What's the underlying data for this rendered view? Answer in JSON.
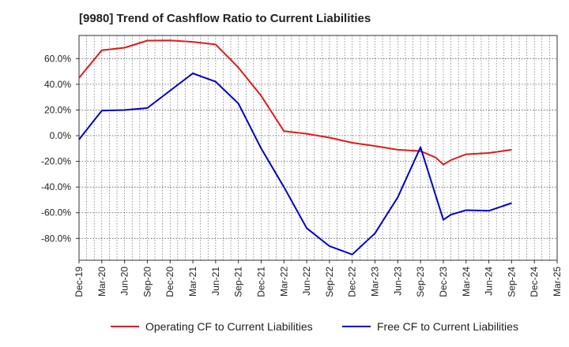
{
  "chart_data": {
    "type": "line",
    "title": "[9980]  Trend of Cashflow Ratio to Current Liabilities",
    "xlabel": "",
    "ylabel": "",
    "x_tick_labels": [
      "Dec-19",
      "Mar-20",
      "Jun-20",
      "Sep-20",
      "Dec-20",
      "Mar-21",
      "Jun-21",
      "Sep-21",
      "Dec-21",
      "Mar-22",
      "Jun-22",
      "Sep-22",
      "Dec-22",
      "Mar-23",
      "Jun-23",
      "Sep-23",
      "Dec-23",
      "Mar-24",
      "Jun-24",
      "Sep-24",
      "Dec-24",
      "Mar-25"
    ],
    "y_tick_labels": [
      "60.0%",
      "40.0%",
      "20.0%",
      "0.0%",
      "-20.0%",
      "-40.0%",
      "-60.0%",
      "-80.0%"
    ],
    "y_tick_values": [
      60,
      40,
      20,
      0,
      -20,
      -40,
      -60,
      -80
    ],
    "ylim": [
      -97,
      78
    ],
    "grid": true,
    "legend_position": "bottom",
    "series": [
      {
        "name": "Operating CF to Current Liabilities",
        "color": "#e31a1c",
        "x": [
          "Dec-19",
          "Mar-20",
          "Jun-20",
          "Sep-20",
          "Dec-20",
          "Mar-21",
          "Jun-21",
          "Sep-21",
          "Dec-21",
          "Mar-22",
          "Jun-22",
          "Sep-22",
          "Dec-22",
          "Mar-23",
          "Jun-23",
          "Sep-23",
          "Nov-23",
          "Dec-23",
          "Jan-24",
          "Mar-24",
          "Jun-24",
          "Sep-24"
        ],
        "values": [
          45,
          66.5,
          68.5,
          74,
          74.2,
          73,
          71,
          53,
          31,
          3.5,
          1.5,
          -1.5,
          -5.5,
          -8,
          -11,
          -12,
          -17,
          -22.5,
          -19,
          -14.5,
          -13.5,
          -11
        ]
      },
      {
        "name": "Free CF to Current Liabilities",
        "color": "#0000cc",
        "x": [
          "Dec-19",
          "Mar-20",
          "Jun-20",
          "Sep-20",
          "Dec-20",
          "Mar-21",
          "Jun-21",
          "Sep-21",
          "Dec-21",
          "Mar-22",
          "Jun-22",
          "Sep-22",
          "Dec-22",
          "Mar-23",
          "Jun-23",
          "Sep-23",
          "Dec-23",
          "Jan-24",
          "Mar-24",
          "Jun-24",
          "Sep-24"
        ],
        "values": [
          -3,
          19.5,
          20,
          21.5,
          35,
          48.5,
          42,
          25,
          -10,
          -40,
          -72,
          -86,
          -92.5,
          -76,
          -48,
          -9,
          -65.5,
          -61.5,
          -58,
          -58.5,
          -52.5
        ]
      }
    ]
  }
}
